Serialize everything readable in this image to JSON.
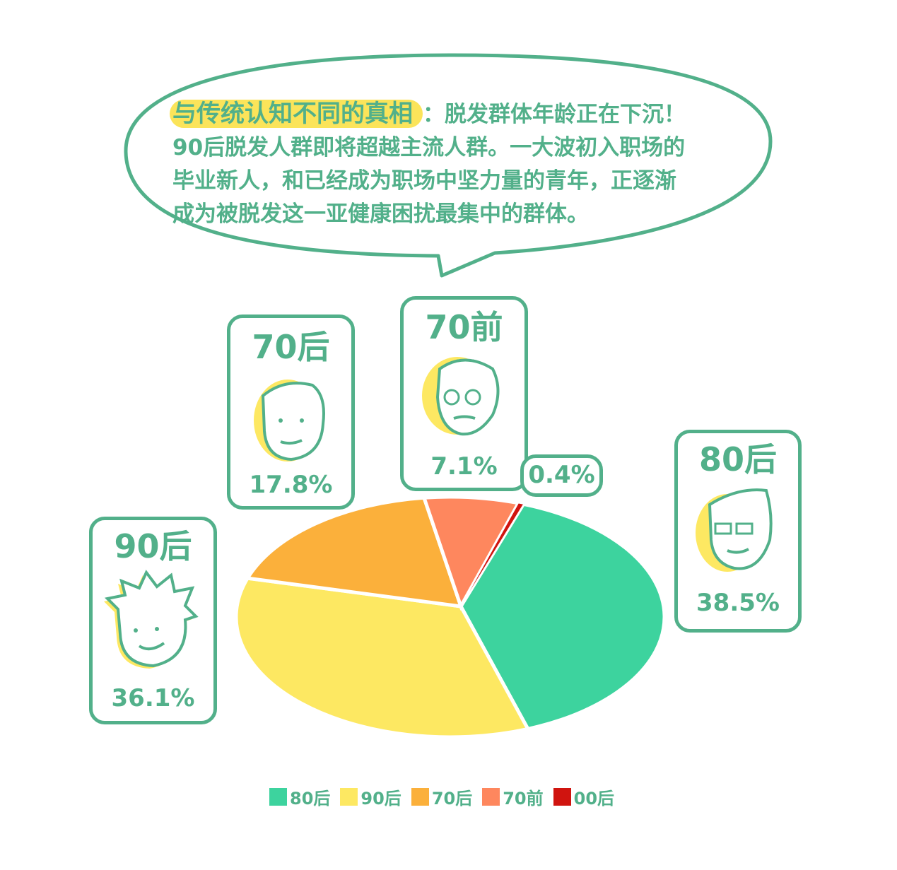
{
  "bubble": {
    "highlight": "与传统认知不同的真相",
    "line1": "：脱发群体年龄正在下沉！",
    "line2": "90后脱发人群即将超越主流人群。一大波初入职场的",
    "line3": "毕业新人，和已经成为职场中坚力量的青年，正逐渐",
    "line4": "成为被脱发这一亚健康困扰最集中的群体。"
  },
  "cards": {
    "c90": {
      "title": "90后",
      "pct": "36.1%"
    },
    "c70": {
      "title": "70后",
      "pct": "17.8%"
    },
    "c70q": {
      "title": "70前",
      "pct": "7.1%"
    },
    "c00": {
      "pct": "0.4%"
    },
    "c80": {
      "title": "80后",
      "pct": "38.5%"
    }
  },
  "chart_data": {
    "type": "pie",
    "categories": [
      "80后",
      "90后",
      "70后",
      "70前",
      "00后"
    ],
    "values": [
      38.5,
      36.1,
      17.8,
      7.1,
      0.4
    ],
    "colors": [
      "#3dd39e",
      "#fde862",
      "#fbb03b",
      "#fe875e",
      "#d0140f"
    ],
    "legend": "bottom"
  }
}
